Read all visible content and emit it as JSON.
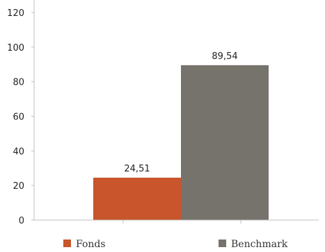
{
  "chart_data": {
    "type": "bar",
    "categories": [
      "Fonds",
      "Benchmark"
    ],
    "series": [
      {
        "name": "Fonds",
        "values": [
          24.51,
          null
        ],
        "color": "#c8552b"
      },
      {
        "name": "Benchmark",
        "values": [
          null,
          89.54
        ],
        "color": "#76736c"
      }
    ],
    "data_labels": [
      "24,51",
      "89,54"
    ],
    "ylim": [
      0,
      120
    ],
    "yticks": [
      "0",
      "20",
      "40",
      "60",
      "80",
      "100",
      "120"
    ],
    "grid": false,
    "legend_position": "bottom",
    "legend": [
      {
        "label": "Fonds",
        "color": "#c8552b"
      },
      {
        "label": "Benchmark",
        "color": "#76736c"
      }
    ]
  }
}
